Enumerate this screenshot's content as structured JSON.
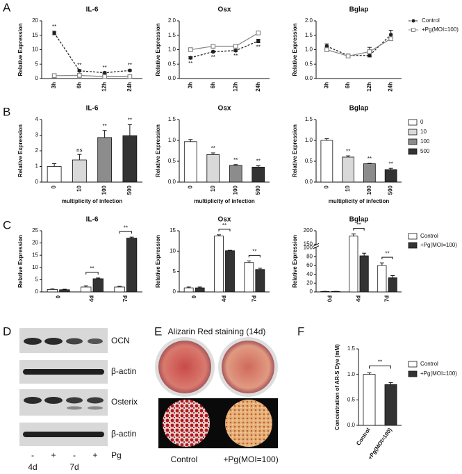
{
  "panel_labels": [
    "A",
    "B",
    "C",
    "D",
    "E",
    "F"
  ],
  "chart_data": [
    {
      "type": "line",
      "title": "IL-6",
      "y_label": "Relative Expression",
      "categories": [
        "3h",
        "6h",
        "12h",
        "24h"
      ],
      "ylim": [
        0,
        20
      ],
      "yticks": [
        0,
        5,
        10,
        15,
        20
      ],
      "series": [
        {
          "color": "#222222",
          "dashed": true,
          "marker": "circle",
          "values": [
            15.8,
            2.7,
            2.0,
            2.8
          ],
          "errors": [
            0.6,
            0.3,
            0.2,
            0.2
          ],
          "annotations": [
            "**",
            "**",
            "**",
            "**"
          ],
          "annotation_side": "above"
        },
        {
          "color": "#888888",
          "dashed": false,
          "marker": "square",
          "values": [
            1.0,
            1.1,
            0.65,
            0.65
          ],
          "errors": [
            0.1,
            0.1,
            0.05,
            0.05
          ]
        }
      ]
    },
    {
      "type": "line",
      "title": "Osx",
      "y_label": "Relative Expression",
      "categories": [
        "3h",
        "6h",
        "12h",
        "24h"
      ],
      "ylim": [
        0,
        2
      ],
      "yticks": [
        {
          "value": 0,
          "label": "0.0"
        },
        0.5,
        {
          "value": 1,
          "label": "1.0"
        },
        1.5,
        {
          "value": 2,
          "label": "2.0"
        }
      ],
      "series": [
        {
          "color": "#222222",
          "dashed": true,
          "marker": "circle",
          "values": [
            0.72,
            0.93,
            0.97,
            1.3
          ],
          "errors": [
            0.04,
            0.03,
            0.03,
            0.06
          ],
          "annotations": [
            "**",
            "**",
            "**",
            "**"
          ],
          "annotation_side": "below"
        },
        {
          "color": "#888888",
          "dashed": false,
          "marker": "square",
          "values": [
            1.0,
            1.12,
            1.12,
            1.58
          ],
          "errors": [
            0.03,
            0.04,
            0.03,
            0.05
          ]
        }
      ]
    },
    {
      "type": "line",
      "title": "Bglap",
      "y_label": "Relative Expression",
      "categories": [
        "3h",
        "6h",
        "12h",
        "24h"
      ],
      "ylim": [
        0,
        2
      ],
      "yticks": [
        {
          "value": 0,
          "label": "0.0"
        },
        0.5,
        {
          "value": 1,
          "label": "1.0"
        },
        1.5,
        {
          "value": 2,
          "label": "2.0"
        }
      ],
      "legend": true,
      "series": [
        {
          "name": "Control",
          "color": "#222222",
          "dashed": true,
          "marker": "circle",
          "values": [
            1.12,
            0.8,
            0.8,
            1.52
          ],
          "errors": [
            0.08,
            0.05,
            0.05,
            0.15
          ]
        },
        {
          "name": "+Pg(MOI=100)",
          "color": "#888888",
          "dashed": false,
          "marker": "square",
          "values": [
            1.0,
            0.78,
            0.93,
            1.38
          ],
          "errors": [
            0.05,
            0.04,
            0.15,
            0.06
          ]
        }
      ]
    },
    {
      "type": "bar",
      "title": "IL-6",
      "y_label": "Relative Expression",
      "x_label": "multiplicity of infection",
      "categories": [
        "0",
        "10",
        "100",
        "500"
      ],
      "colors": [
        "#ffffff",
        "#d9d9d9",
        "#8c8c8c",
        "#333333"
      ],
      "ylim": [
        0,
        4
      ],
      "yticks": [
        0,
        1,
        2,
        3,
        4
      ],
      "values": [
        1.0,
        1.42,
        2.85,
        2.97
      ],
      "errors": [
        0.18,
        0.35,
        0.45,
        0.7
      ],
      "annotations": [
        null,
        "ns",
        "**",
        "**"
      ]
    },
    {
      "type": "bar",
      "title": "Osx",
      "y_label": "Relative Expression",
      "x_label": "multiplicity of infection",
      "categories": [
        "0",
        "10",
        "100",
        "500"
      ],
      "colors": [
        "#ffffff",
        "#d9d9d9",
        "#8c8c8c",
        "#333333"
      ],
      "ylim": [
        0,
        1.5
      ],
      "yticks": [
        {
          "value": 0,
          "label": "0.0"
        },
        0.5,
        {
          "value": 1,
          "label": "1.0"
        },
        1.5
      ],
      "values": [
        0.97,
        0.66,
        0.4,
        0.36
      ],
      "errors": [
        0.05,
        0.04,
        0.02,
        0.03
      ],
      "annotations": [
        null,
        "**",
        "**",
        "**"
      ]
    },
    {
      "type": "bar",
      "title": "Bglap",
      "y_label": "Relative Expression",
      "x_label": "multiplicity of infection",
      "categories": [
        "0",
        "10",
        "100",
        "500"
      ],
      "colors": [
        "#ffffff",
        "#d9d9d9",
        "#8c8c8c",
        "#333333"
      ],
      "ylim": [
        0,
        1.5
      ],
      "yticks": [
        {
          "value": 0,
          "label": "0.0"
        },
        0.5,
        {
          "value": 1,
          "label": "1.0"
        },
        1.5
      ],
      "values": [
        1.0,
        0.6,
        0.44,
        0.3
      ],
      "errors": [
        0.04,
        0.03,
        0.01,
        0.03
      ],
      "annotations": [
        null,
        "**",
        "**",
        "**"
      ],
      "legend": true
    },
    {
      "type": "grouped_bar",
      "title": "IL-6",
      "y_label": "Relative Expression",
      "categories": [
        "0",
        "4d",
        "7d"
      ],
      "ylim": [
        0,
        25
      ],
      "yticks": [
        0,
        5,
        10,
        15,
        20,
        25
      ],
      "annotations": [
        null,
        "**",
        "**"
      ],
      "series": [
        {
          "color": "#ffffff",
          "values": [
            1.0,
            2.0,
            2.0
          ],
          "errors": [
            0.2,
            0.5,
            0.3
          ]
        },
        {
          "color": "#333333",
          "values": [
            0.9,
            5.4,
            22.0
          ],
          "errors": [
            0.2,
            0.3,
            0.4
          ]
        }
      ]
    },
    {
      "type": "grouped_bar",
      "title": "Osx",
      "y_label": "Relative Expression",
      "categories": [
        "0",
        "4d",
        "7d"
      ],
      "ylim": [
        0,
        15
      ],
      "yticks": [
        0,
        5,
        10,
        15
      ],
      "annotations": [
        null,
        "**",
        "**"
      ],
      "series": [
        {
          "color": "#ffffff",
          "values": [
            1.0,
            13.7,
            7.2
          ],
          "errors": [
            0.2,
            0.3,
            0.4
          ]
        },
        {
          "color": "#333333",
          "values": [
            1.0,
            10.1,
            5.5
          ],
          "errors": [
            0.2,
            0.1,
            0.3
          ]
        }
      ]
    },
    {
      "type": "grouped_bar",
      "title": "Bglap",
      "y_label": "Relative Expression",
      "categories": [
        "0d",
        "4d",
        "7d"
      ],
      "ylim": [
        0,
        200
      ],
      "ybreak": [
        100,
        150
      ],
      "yticks": [
        0,
        20,
        40,
        60,
        80,
        100,
        150,
        200
      ],
      "annotations": [
        null,
        "**",
        "**"
      ],
      "legend": true,
      "series": [
        {
          "name": "Control",
          "color": "#ffffff",
          "values": [
            1,
            180,
            60
          ],
          "errors": [
            0.3,
            8,
            6
          ]
        },
        {
          "name": "+Pg(MOI=100)",
          "color": "#333333",
          "values": [
            1,
            82,
            32
          ],
          "errors": [
            0.3,
            6,
            5
          ]
        }
      ]
    },
    {
      "type": "bar",
      "y_label": "Concentration of AR-S Dye (mM)",
      "categories": [
        "Control",
        "+Pg(MOI=100)"
      ],
      "colors": [
        "#ffffff",
        "#333333"
      ],
      "ylim": [
        0,
        1.5
      ],
      "yticks": [
        {
          "value": 0,
          "label": "0.0"
        },
        0.5,
        {
          "value": 1,
          "label": "1.0"
        },
        1.5
      ],
      "values": [
        1.0,
        0.8
      ],
      "errors": [
        0.03,
        0.04
      ],
      "bracket": "**",
      "legend": true
    }
  ],
  "blot": {
    "bands": [
      "OCN",
      "β-actin",
      "Osterix",
      "β-actin"
    ],
    "lanes": [
      "-",
      "+",
      "-",
      "+"
    ],
    "treatment": "Pg",
    "times": [
      "4d",
      "7d"
    ]
  },
  "staining": {
    "title": "Alizarin Red staining (14d)",
    "labels": [
      "Control",
      "+Pg(MOI=100)"
    ]
  }
}
